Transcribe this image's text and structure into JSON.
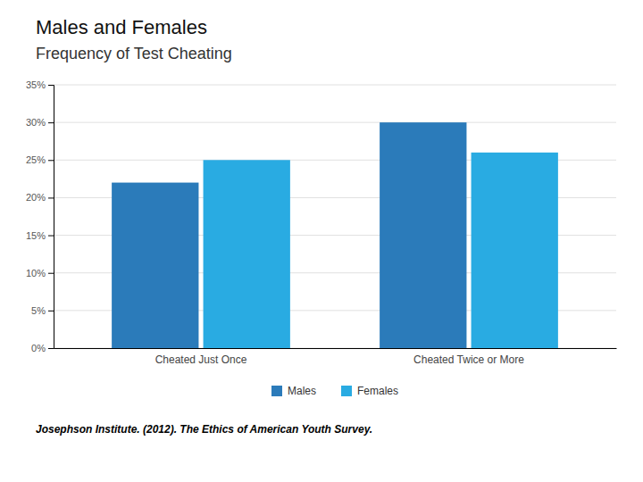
{
  "chart_data": {
    "type": "bar",
    "title": "Males and Females",
    "subtitle": "Frequency of Test Cheating",
    "categories": [
      "Cheated Just Once",
      "Cheated Twice or More"
    ],
    "series": [
      {
        "name": "Males",
        "color": "#2b7bba",
        "values": [
          0.22,
          0.3
        ]
      },
      {
        "name": "Females",
        "color": "#29abe2",
        "values": [
          0.25,
          0.26
        ]
      }
    ],
    "ylim": [
      0,
      0.35
    ],
    "yticks": [
      {
        "value": 0.0,
        "label": "0%"
      },
      {
        "value": 0.05,
        "label": "5%"
      },
      {
        "value": 0.1,
        "label": "10%"
      },
      {
        "value": 0.15,
        "label": "15%"
      },
      {
        "value": 0.2,
        "label": "20%"
      },
      {
        "value": 0.25,
        "label": "25%"
      },
      {
        "value": 0.3,
        "label": "30%"
      },
      {
        "value": 0.35,
        "label": "35%"
      }
    ],
    "grid": true,
    "legend": "bottom",
    "annotations": [
      "Josephson Institute. (2012). The Ethics of American Youth Survey."
    ]
  }
}
